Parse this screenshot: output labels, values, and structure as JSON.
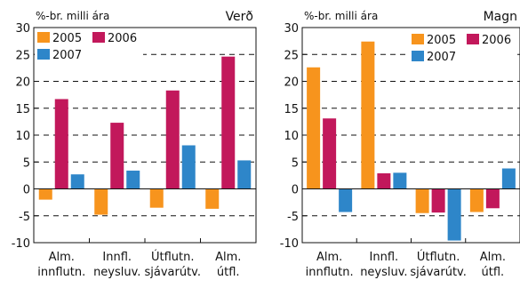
{
  "chart_data": [
    {
      "type": "bar",
      "title": "Verð",
      "ylabel": "%-br. milli ára",
      "ylim": [
        -10,
        30
      ],
      "yticks": [
        -10,
        -5,
        0,
        5,
        10,
        15,
        20,
        25,
        30
      ],
      "grid": "dashed horizontal",
      "legend": "top-left",
      "categories": [
        [
          "Alm.",
          "innflutn."
        ],
        [
          "Innfl.",
          "neysluv."
        ],
        [
          "Útflutn.",
          "sjávarútv."
        ],
        [
          "Alm.",
          "útfl."
        ]
      ],
      "series": [
        {
          "name": "2005",
          "color": "#f7941d",
          "values": [
            -2.0,
            -4.8,
            -3.5,
            -3.7
          ]
        },
        {
          "name": "2006",
          "color": "#c2185b",
          "values": [
            16.7,
            12.3,
            18.3,
            24.6
          ]
        },
        {
          "name": "2007",
          "color": "#2e86c9",
          "values": [
            2.7,
            3.4,
            8.1,
            5.3
          ]
        }
      ]
    },
    {
      "type": "bar",
      "title": "Magn",
      "ylabel": "%-br. milli ára",
      "ylim": [
        -10,
        30
      ],
      "yticks": [
        -10,
        -5,
        0,
        5,
        10,
        15,
        20,
        25,
        30
      ],
      "grid": "dashed horizontal",
      "legend": "top-right",
      "categories": [
        [
          "Alm.",
          "innflutn."
        ],
        [
          "Innfl.",
          "neysluv."
        ],
        [
          "Útflutn.",
          "sjávarútv."
        ],
        [
          "Alm.",
          "útfl."
        ]
      ],
      "series": [
        {
          "name": "2005",
          "color": "#f7941d",
          "values": [
            22.6,
            27.4,
            -4.5,
            -4.3
          ]
        },
        {
          "name": "2006",
          "color": "#c2185b",
          "values": [
            13.1,
            2.9,
            -4.4,
            -3.6
          ]
        },
        {
          "name": "2007",
          "color": "#2e86c9",
          "values": [
            -4.3,
            3.0,
            -9.6,
            3.8
          ]
        }
      ]
    }
  ]
}
